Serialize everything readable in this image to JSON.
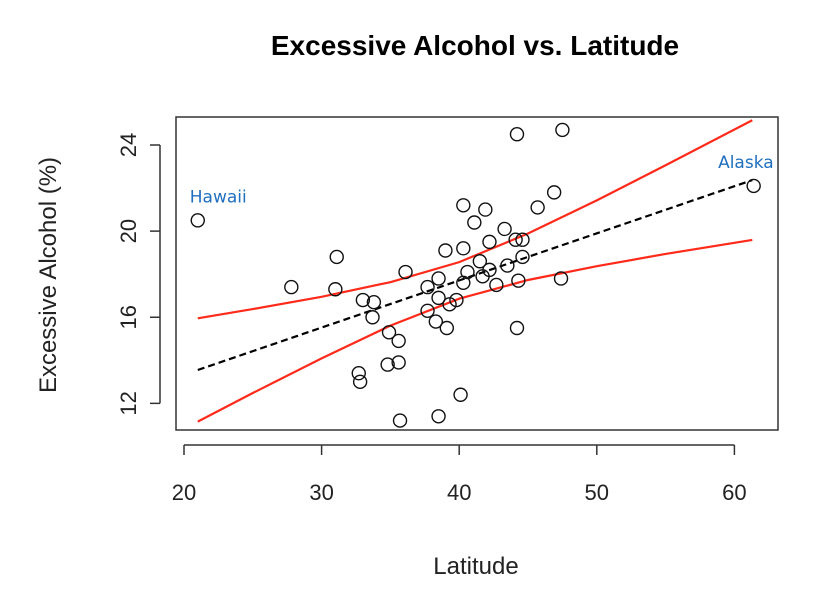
{
  "chart_data": {
    "type": "scatter",
    "title": "Excessive Alcohol vs. Latitude",
    "xlabel": "Latitude",
    "ylabel": "Excessive Alcohol (%)",
    "xlim": [
      19.5,
      63
    ],
    "ylim": [
      10.7,
      25.3
    ],
    "xticks": [
      20,
      30,
      40,
      50,
      60
    ],
    "yticks": [
      12,
      16,
      20,
      24
    ],
    "grid": false,
    "points": [
      [
        21.0,
        20.5
      ],
      [
        27.8,
        17.4
      ],
      [
        31.1,
        18.8
      ],
      [
        31.0,
        17.3
      ],
      [
        33.0,
        16.8
      ],
      [
        33.8,
        16.7
      ],
      [
        33.7,
        16.0
      ],
      [
        34.9,
        15.3
      ],
      [
        35.6,
        14.9
      ],
      [
        34.8,
        13.8
      ],
      [
        35.6,
        13.9
      ],
      [
        32.7,
        13.4
      ],
      [
        32.8,
        13.0
      ],
      [
        35.7,
        11.2
      ],
      [
        38.5,
        11.4
      ],
      [
        40.1,
        12.4
      ],
      [
        36.1,
        18.1
      ],
      [
        39.0,
        19.1
      ],
      [
        40.3,
        19.2
      ],
      [
        40.3,
        21.2
      ],
      [
        41.1,
        20.4
      ],
      [
        41.9,
        21.0
      ],
      [
        42.2,
        19.5
      ],
      [
        43.3,
        20.1
      ],
      [
        44.1,
        19.6
      ],
      [
        44.6,
        19.6
      ],
      [
        44.6,
        18.8
      ],
      [
        43.5,
        18.4
      ],
      [
        44.3,
        17.7
      ],
      [
        47.4,
        17.8
      ],
      [
        44.2,
        15.5
      ],
      [
        44.2,
        24.5
      ],
      [
        47.5,
        24.7
      ],
      [
        45.7,
        21.1
      ],
      [
        46.9,
        21.8
      ],
      [
        42.7,
        17.5
      ],
      [
        41.7,
        17.9
      ],
      [
        42.2,
        18.2
      ],
      [
        41.5,
        18.6
      ],
      [
        40.6,
        18.1
      ],
      [
        40.3,
        17.6
      ],
      [
        38.5,
        17.8
      ],
      [
        37.7,
        17.4
      ],
      [
        38.5,
        16.9
      ],
      [
        39.8,
        16.8
      ],
      [
        39.3,
        16.6
      ],
      [
        37.7,
        16.3
      ],
      [
        38.3,
        15.8
      ],
      [
        39.1,
        15.5
      ],
      [
        61.4,
        22.1
      ]
    ],
    "fit_line": {
      "x": [
        21,
        61.3
      ],
      "y": [
        13.55,
        22.37
      ],
      "style": "dashed",
      "color": "#000000"
    },
    "confidence_band": {
      "x": [
        21,
        25,
        30,
        35,
        40,
        45,
        50,
        55,
        61.3
      ],
      "upper": [
        15.95,
        16.38,
        16.95,
        17.63,
        18.56,
        19.89,
        21.43,
        23.06,
        25.15
      ],
      "lower": [
        11.15,
        12.48,
        14.09,
        15.61,
        16.86,
        17.73,
        18.37,
        18.94,
        19.59
      ],
      "color": "#ff2a1a"
    },
    "annotations": [
      {
        "text": "Hawaii",
        "x": 21.0,
        "y": 20.5
      },
      {
        "text": "Alaska",
        "x": 61.4,
        "y": 22.1
      }
    ],
    "annotation_color": "#1f6fbf"
  }
}
